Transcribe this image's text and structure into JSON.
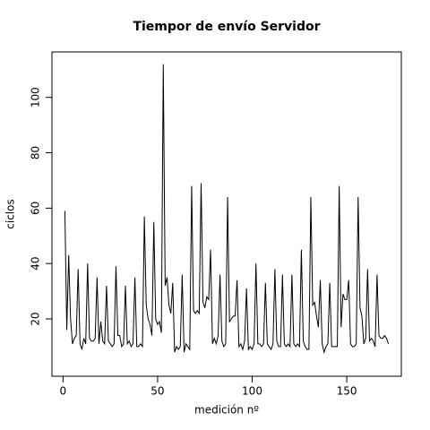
{
  "chart_data": {
    "type": "line",
    "title": "Tiempor de envío Servidor",
    "x_label": "medición nº",
    "y_label": "ciclos",
    "x": [
      1,
      2,
      3,
      4,
      5,
      6,
      7,
      8,
      9,
      10,
      11,
      12,
      13,
      14,
      15,
      16,
      17,
      18,
      19,
      20,
      21,
      22,
      23,
      24,
      25,
      26,
      27,
      28,
      29,
      30,
      31,
      32,
      33,
      34,
      35,
      36,
      37,
      38,
      39,
      40,
      41,
      42,
      43,
      44,
      45,
      46,
      47,
      48,
      49,
      50,
      51,
      52,
      53,
      54,
      55,
      56,
      57,
      58,
      59,
      60,
      61,
      62,
      63,
      64,
      65,
      66,
      67,
      68,
      69,
      70,
      71,
      72,
      73,
      74,
      75,
      76,
      77,
      78,
      79,
      80,
      81,
      82,
      83,
      84,
      85,
      86,
      87,
      88,
      89,
      90,
      91,
      92,
      93,
      94,
      95,
      96,
      97,
      98,
      99,
      100,
      101,
      102,
      103,
      104,
      105,
      106,
      107,
      108,
      109,
      110,
      111,
      112,
      113,
      114,
      115,
      116,
      117,
      118,
      119,
      120,
      121,
      122,
      123,
      124,
      125,
      126,
      127,
      128,
      129,
      130,
      131,
      132,
      133,
      134,
      135,
      136,
      137,
      138,
      139,
      140,
      141,
      142,
      143,
      144,
      145,
      146,
      147,
      148,
      149,
      150,
      151,
      152,
      153,
      154,
      155,
      156,
      157,
      158,
      159,
      160,
      161,
      162,
      163,
      164,
      165,
      166,
      167,
      168,
      169,
      170,
      171,
      172
    ],
    "values": [
      59,
      16,
      43,
      20,
      11,
      13,
      14,
      38,
      11,
      9,
      13,
      11,
      40,
      13,
      12,
      12,
      13,
      35,
      11,
      19,
      12,
      11,
      32,
      12,
      11,
      10,
      11,
      39,
      14,
      14,
      10,
      11,
      32,
      11,
      12,
      10,
      11,
      35,
      10,
      10,
      11,
      10,
      57,
      25,
      20,
      18,
      14,
      55,
      20,
      18,
      19,
      15,
      112,
      32,
      35,
      25,
      22,
      33,
      8,
      10,
      9,
      10,
      36,
      8,
      11,
      10,
      9,
      68,
      23,
      22,
      23,
      22,
      69,
      26,
      24,
      28,
      27,
      45,
      11,
      13,
      11,
      14,
      36,
      12,
      10,
      11,
      64,
      19,
      20,
      21,
      21,
      34,
      10,
      11,
      9,
      12,
      31,
      9,
      10,
      9,
      11,
      40,
      11,
      11,
      10,
      11,
      33,
      11,
      10,
      9,
      11,
      38,
      12,
      10,
      10,
      36,
      11,
      10,
      11,
      10,
      36,
      11,
      10,
      11,
      10,
      45,
      12,
      10,
      9,
      9,
      64,
      25,
      26,
      21,
      17,
      34,
      11,
      8,
      10,
      11,
      33,
      10,
      10,
      10,
      10,
      68,
      17,
      29,
      27,
      27,
      34,
      11,
      10,
      10,
      11,
      64,
      24,
      21,
      11,
      13,
      38,
      12,
      13,
      12,
      10,
      36,
      14,
      13,
      13,
      14,
      13,
      11
    ],
    "color": "#000000",
    "xlim": [
      -5.84,
      178.84
    ],
    "xticks": [
      0,
      50,
      100,
      150
    ],
    "ylim": [
      -0.7,
      116.4
    ],
    "yticks": [
      20,
      40,
      60,
      80,
      100
    ]
  }
}
